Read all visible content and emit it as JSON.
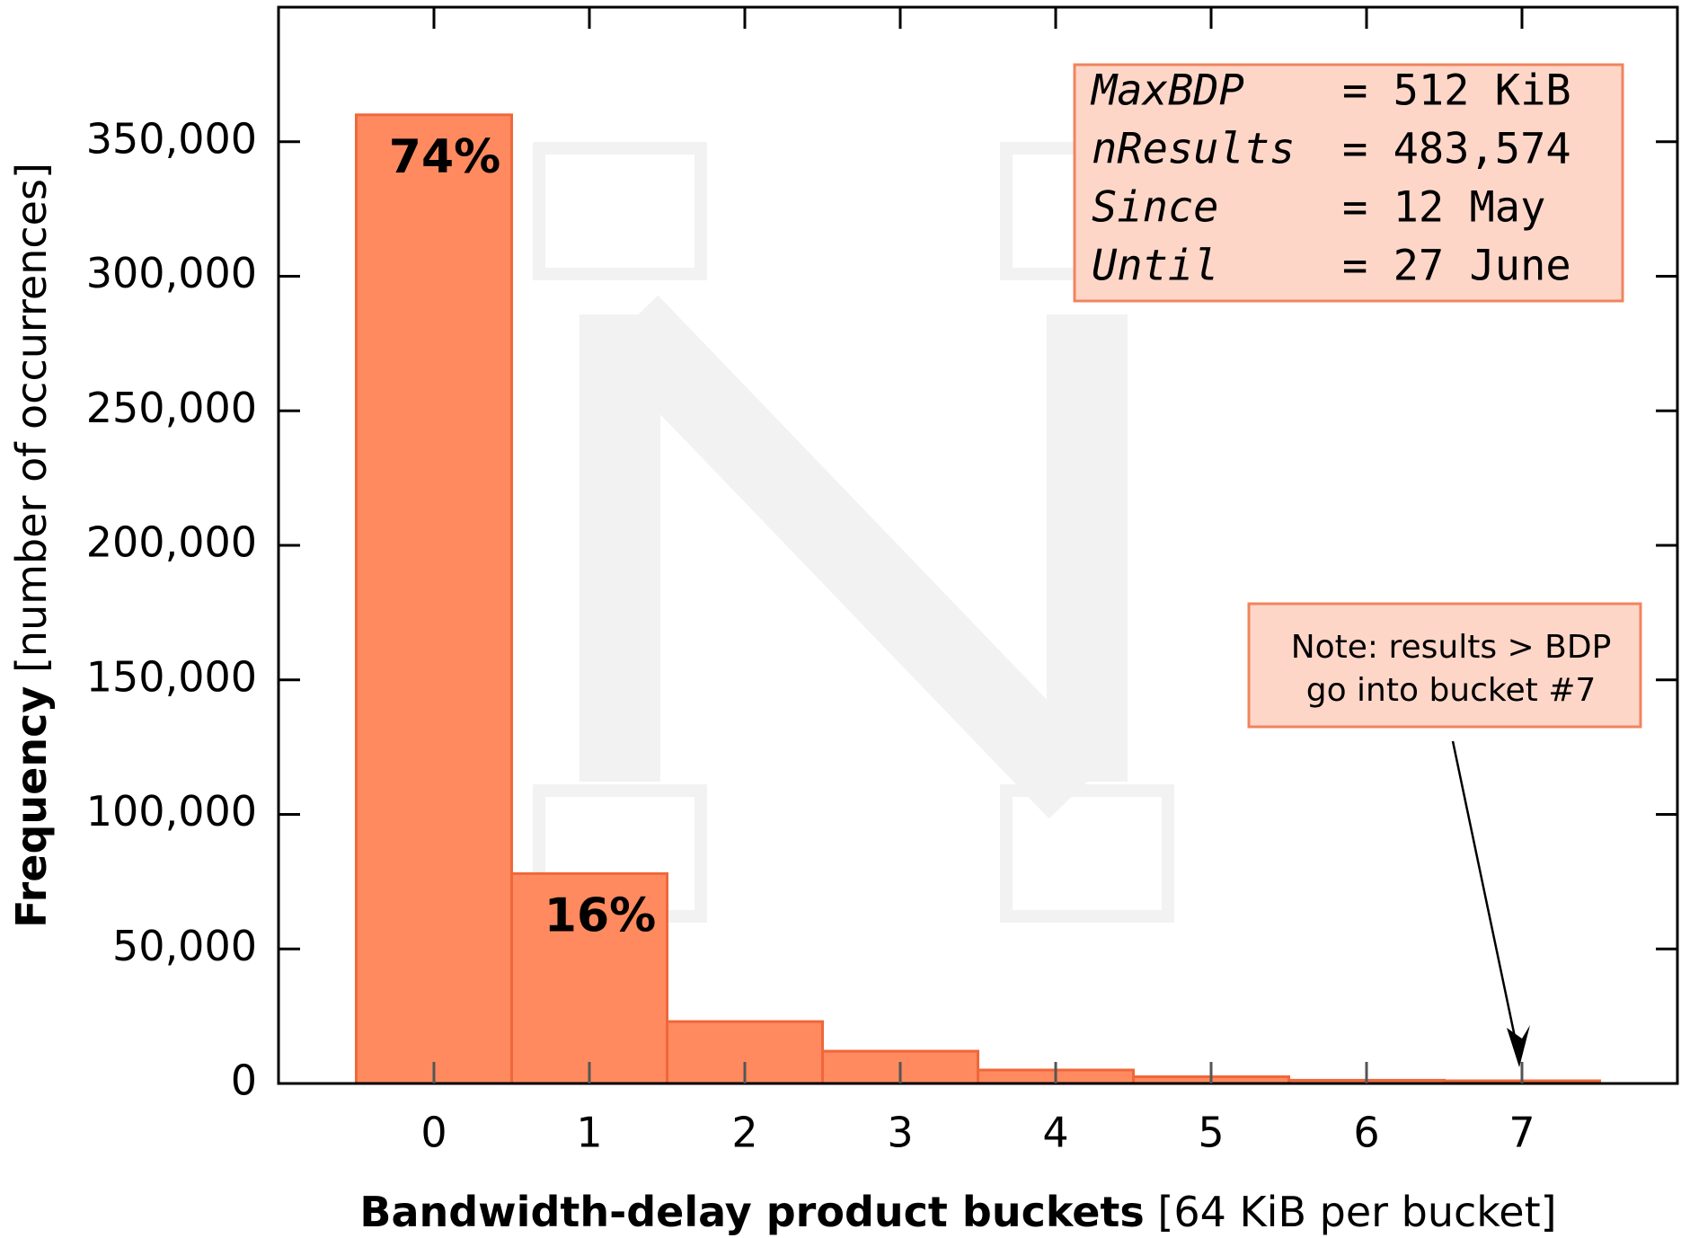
{
  "chart_data": {
    "type": "bar",
    "x": [
      0,
      1,
      2,
      3,
      4,
      5,
      6,
      7
    ],
    "values": [
      360000,
      78000,
      23000,
      12000,
      5000,
      2500,
      1200,
      1000
    ],
    "color": "#ff8a5f",
    "edge_color": "#f0673a",
    "xlim": [
      -1,
      8
    ],
    "xticks": [
      0,
      1,
      2,
      3,
      4,
      5,
      6,
      7
    ],
    "ylim": [
      0,
      400000
    ],
    "yticks": [
      0,
      {
        "value": 50000,
        "label": "50,000"
      },
      {
        "value": 100000,
        "label": "100,000"
      },
      {
        "value": 150000,
        "label": "150,000"
      },
      {
        "value": 200000,
        "label": "200,000"
      },
      {
        "value": 250000,
        "label": "250,000"
      },
      {
        "value": 300000,
        "label": "300,000"
      },
      {
        "value": 350000,
        "label": "350,000"
      }
    ],
    "grid": false,
    "ylabel": {
      "bold": "Frequency",
      "normal": "[number of occurrences]"
    },
    "xlabel": {
      "bold": "Bandwidth-delay product buckets",
      "normal": "[64 KiB per bucket]"
    },
    "bar_annotations": [
      {
        "index": 0,
        "text": "74%"
      },
      {
        "index": 1,
        "text": "16%"
      }
    ],
    "info_box": [
      [
        "MaxBDP",
        "= 512 KiB"
      ],
      [
        "nResults",
        "= 483,574"
      ],
      [
        "Since",
        "= 12 May"
      ],
      [
        "Until",
        "= 27 June"
      ]
    ],
    "note": {
      "lines": [
        "Note: results > BDP",
        "go into bucket #7"
      ],
      "points_to": 7
    }
  }
}
